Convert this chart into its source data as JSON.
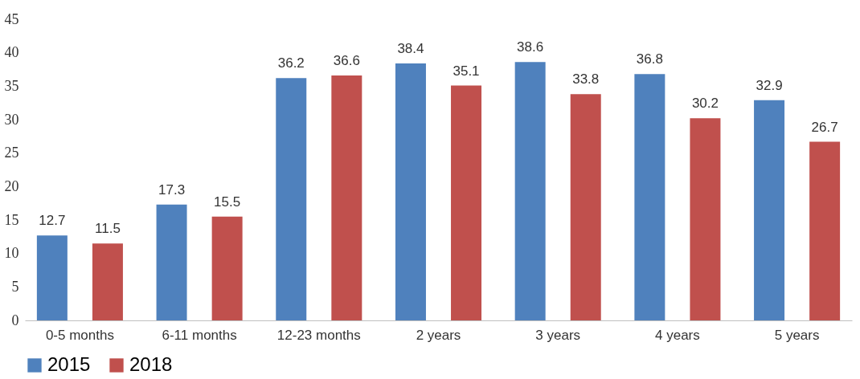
{
  "chart_data": {
    "type": "bar",
    "categories": [
      "0-5 months",
      "6-11 months",
      "12-23 months",
      "2 years",
      "3 years",
      "4 years",
      "5 years"
    ],
    "series": [
      {
        "name": "2015",
        "color": "#4f81bd",
        "values": [
          12.7,
          17.3,
          36.2,
          38.4,
          38.6,
          36.8,
          32.9
        ]
      },
      {
        "name": "2018",
        "color": "#c0504d",
        "values": [
          11.5,
          15.5,
          36.6,
          35.1,
          33.8,
          30.2,
          26.7
        ]
      }
    ],
    "ylim": [
      0,
      45
    ],
    "yticks": [
      0,
      5,
      10,
      15,
      20,
      25,
      30,
      35,
      40,
      45
    ],
    "data_labels": true,
    "grid": false,
    "legend": "bottom"
  }
}
